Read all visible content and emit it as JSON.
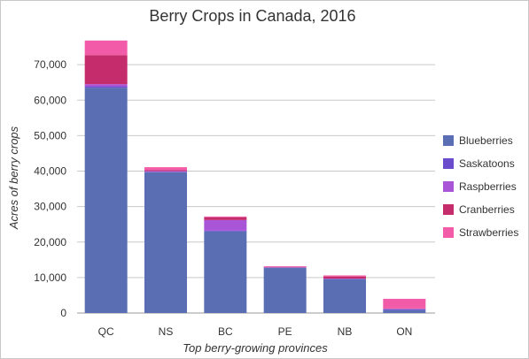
{
  "chart_data": {
    "type": "bar",
    "stacked": true,
    "title": "Berry Crops in Canada, 2016",
    "xlabel": "Top berry-growing provinces",
    "ylabel": "Acres of berry crops",
    "ylim": [
      0,
      80000
    ],
    "yticks": [
      0,
      10000,
      20000,
      30000,
      40000,
      50000,
      60000,
      70000
    ],
    "ytick_labels": [
      "0",
      "10,000",
      "20,000",
      "30,000",
      "40,000",
      "50,000",
      "60,000",
      "70,000"
    ],
    "grid": true,
    "legend_position": "right",
    "categories": [
      "QC",
      "NS",
      "BC",
      "PE",
      "NB",
      "ON"
    ],
    "series": [
      {
        "name": "Blueberries",
        "color": "#5a6eb4",
        "values": [
          63500,
          39700,
          23000,
          12700,
          9500,
          800
        ]
      },
      {
        "name": "Saskatoons",
        "color": "#6a4ccc",
        "values": [
          300,
          100,
          200,
          100,
          100,
          300
        ]
      },
      {
        "name": "Raspberries",
        "color": "#a855d8",
        "values": [
          700,
          200,
          3000,
          100,
          100,
          100
        ]
      },
      {
        "name": "Cranberries",
        "color": "#c42c6c",
        "values": [
          8200,
          300,
          800,
          100,
          600,
          100
        ]
      },
      {
        "name": "Strawberries",
        "color": "#f25ba8",
        "values": [
          4100,
          800,
          200,
          200,
          300,
          2700
        ]
      }
    ]
  }
}
